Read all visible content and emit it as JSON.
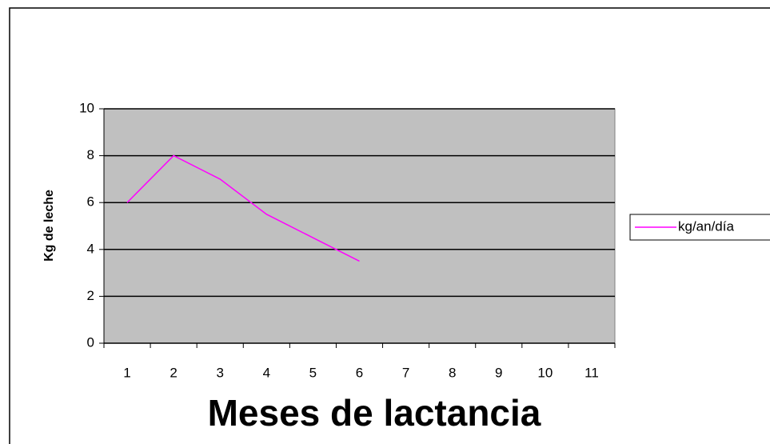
{
  "chart_data": {
    "type": "line",
    "x_label": "Meses de lactancia",
    "y_label": "Kg de leche",
    "categories": [
      "1",
      "2",
      "3",
      "4",
      "5",
      "6",
      "7",
      "8",
      "9",
      "10",
      "11"
    ],
    "series": [
      {
        "name": "kg/an/día",
        "color": "#ff00ff",
        "values": [
          6,
          8,
          7,
          5.5,
          4.5,
          3.5,
          null,
          null,
          null,
          null,
          null
        ]
      }
    ],
    "ylim": [
      0,
      10
    ],
    "yticks": [
      0,
      2,
      4,
      6,
      8,
      10
    ],
    "grid": true,
    "legend": "right"
  }
}
